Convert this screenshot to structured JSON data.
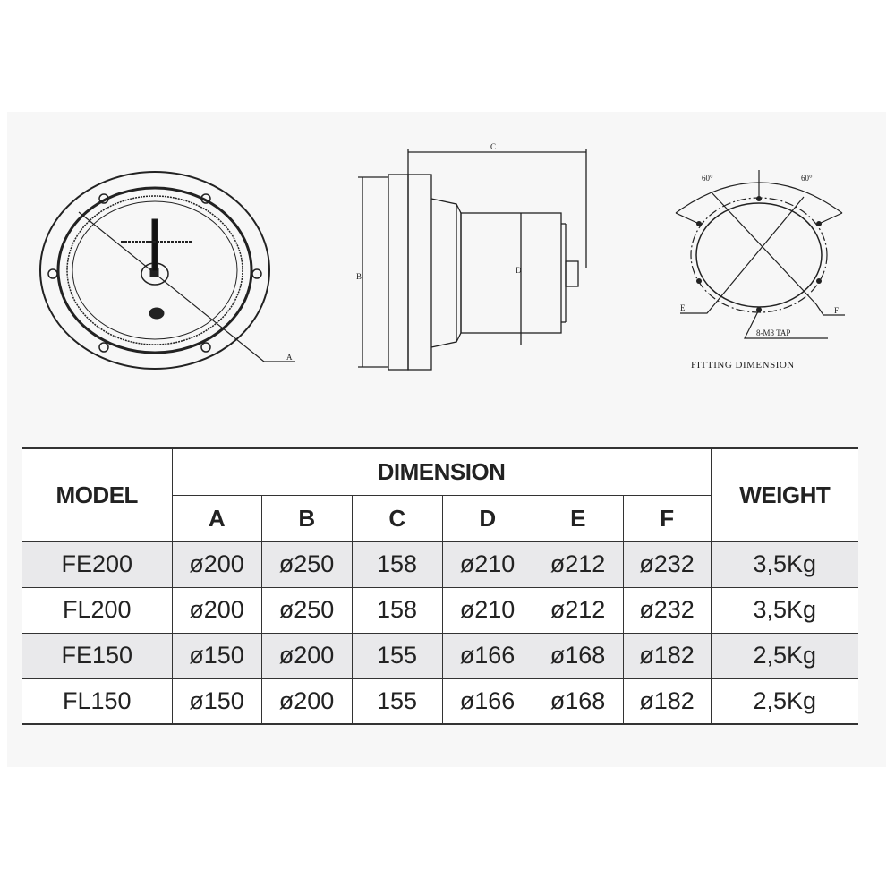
{
  "drawings": {
    "front_view": {
      "label_a": "A"
    },
    "side_view": {
      "label_b": "B",
      "label_c": "C",
      "label_d": "D"
    },
    "fitting": {
      "angle_left": "60°",
      "angle_right": "60°",
      "label_e": "E",
      "label_f": "F",
      "tap_label": "8-M8 TAP",
      "caption": "FITTING DIMENSION"
    }
  },
  "table": {
    "model_header": "MODEL",
    "dimension_header": "DIMENSION",
    "weight_header": "WEIGHT",
    "dimension_columns": [
      "A",
      "B",
      "C",
      "D",
      "E",
      "F"
    ],
    "rows": [
      {
        "model": "FE200",
        "dims": [
          "ø200",
          "ø250",
          "158",
          "ø210",
          "ø212",
          "ø232"
        ],
        "weight": "3,5Kg",
        "shaded": true
      },
      {
        "model": "FL200",
        "dims": [
          "ø200",
          "ø250",
          "158",
          "ø210",
          "ø212",
          "ø232"
        ],
        "weight": "3,5Kg",
        "shaded": false
      },
      {
        "model": "FE150",
        "dims": [
          "ø150",
          "ø200",
          "155",
          "ø166",
          "ø168",
          "ø182"
        ],
        "weight": "2,5Kg",
        "shaded": true
      },
      {
        "model": "FL150",
        "dims": [
          "ø150",
          "ø200",
          "155",
          "ø166",
          "ø168",
          "ø182"
        ],
        "weight": "2,5Kg",
        "shaded": false
      }
    ]
  }
}
